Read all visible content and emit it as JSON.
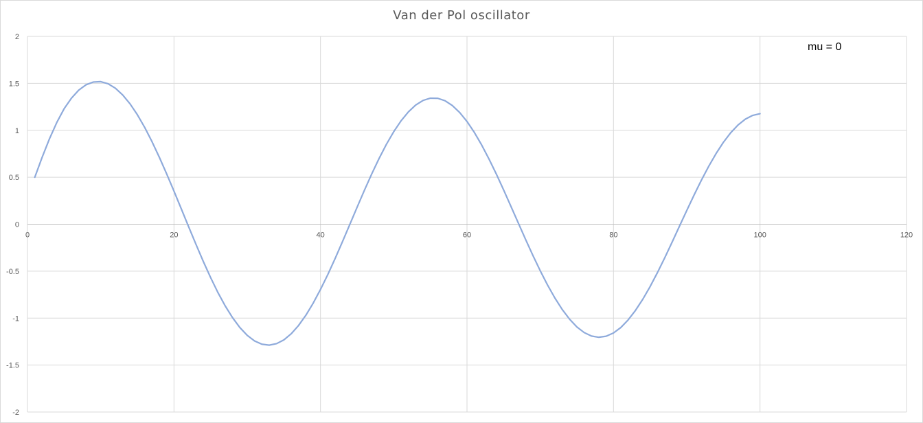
{
  "chart_data": {
    "type": "line",
    "title": "Van der Pol oscillator",
    "annotation": "mu = 0",
    "xlabel": "",
    "ylabel": "",
    "xlim": [
      0,
      120
    ],
    "ylim": [
      -2,
      2
    ],
    "x_ticks": [
      "0",
      "20",
      "40",
      "60",
      "80",
      "100",
      "120"
    ],
    "y_ticks": [
      "2",
      "1.5",
      "1",
      "0.5",
      "0",
      "-0.5",
      "-1",
      "-1.5",
      "-2"
    ],
    "grid": true,
    "legend": "none",
    "series_color": "#8eaadb",
    "series": [
      {
        "x": [
          1,
          2,
          3,
          4,
          5,
          6,
          7,
          8,
          9,
          10,
          11,
          12,
          13,
          14,
          15,
          16,
          17,
          18,
          19,
          20,
          21,
          22,
          23,
          24,
          25,
          26,
          27,
          28,
          29,
          30,
          31,
          32,
          33,
          34,
          35,
          36,
          37,
          38,
          39,
          40,
          41,
          42,
          43,
          44,
          45,
          46,
          47,
          48,
          49,
          50,
          51,
          52,
          53,
          54,
          55,
          56,
          57,
          58,
          59,
          60,
          61,
          62,
          63,
          64,
          65,
          66,
          67,
          68,
          69,
          70,
          71,
          72,
          73,
          74,
          75,
          76,
          77,
          78,
          79,
          80,
          81,
          82,
          83,
          84,
          85,
          86,
          87,
          88,
          89,
          90,
          91,
          92,
          93,
          94,
          95,
          96,
          97,
          98,
          99,
          100
        ],
        "y": [
          0.5,
          0.712,
          0.909,
          1.083,
          1.229,
          1.342,
          1.428,
          1.485,
          1.514,
          1.518,
          1.496,
          1.448,
          1.376,
          1.282,
          1.166,
          1.031,
          0.879,
          0.713,
          0.536,
          0.352,
          0.163,
          -0.027,
          -0.214,
          -0.396,
          -0.568,
          -0.728,
          -0.871,
          -0.996,
          -1.101,
          -1.184,
          -1.243,
          -1.278,
          -1.288,
          -1.272,
          -1.232,
          -1.167,
          -1.079,
          -0.97,
          -0.841,
          -0.695,
          -0.536,
          -0.365,
          -0.186,
          -0.003,
          0.181,
          0.362,
          0.536,
          0.7,
          0.851,
          0.985,
          1.101,
          1.196,
          1.269,
          1.318,
          1.342,
          1.341,
          1.315,
          1.264,
          1.19,
          1.094,
          0.978,
          0.844,
          0.695,
          0.535,
          0.365,
          0.19,
          0.013,
          -0.162,
          -0.333,
          -0.496,
          -0.648,
          -0.786,
          -0.908,
          -1.011,
          -1.094,
          -1.154,
          -1.191,
          -1.204,
          -1.193,
          -1.158,
          -1.1,
          -1.019,
          -0.918,
          -0.799,
          -0.664,
          -0.515,
          -0.357,
          -0.191,
          -0.022,
          0.146,
          0.311,
          0.469,
          0.617,
          0.752,
          0.872,
          0.974,
          1.057,
          1.119,
          1.159,
          1.177
        ]
      }
    ]
  }
}
